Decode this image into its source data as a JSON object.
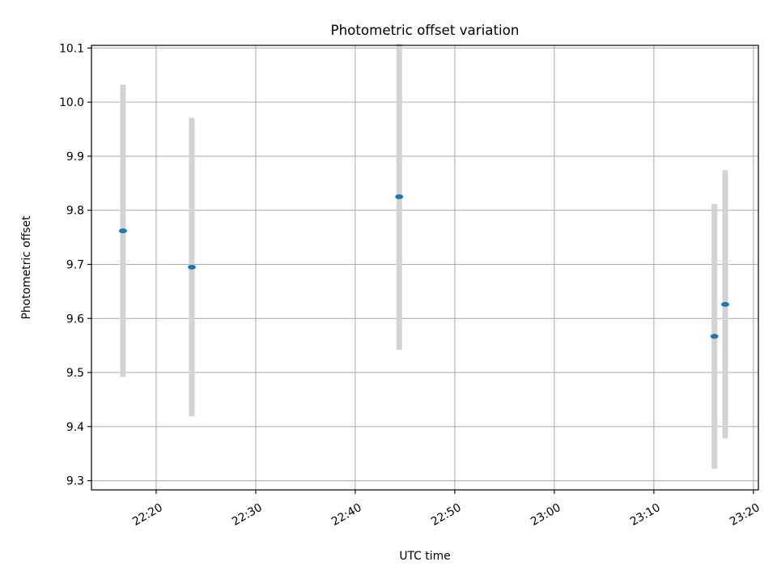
{
  "chart_data": {
    "type": "scatter",
    "title": "Photometric offset variation",
    "xlabel": "UTC time",
    "ylabel": "Photometric offset",
    "xlim": [
      "22:13:30",
      "23:20:30"
    ],
    "ylim": [
      9.283,
      10.105
    ],
    "x_ticks": [
      "22:20",
      "22:30",
      "22:40",
      "22:50",
      "23:00",
      "23:10",
      "23:20"
    ],
    "y_ticks": [
      "9.3",
      "9.4",
      "9.5",
      "9.6",
      "9.7",
      "9.8",
      "9.9",
      "10.0",
      "10.1"
    ],
    "grid": true,
    "marker_color": "#1f77b4",
    "errorbar_color": "#d3d3d3",
    "points": [
      {
        "x": "22:16:40",
        "y": 9.762,
        "yerr": 0.27
      },
      {
        "x": "22:23:35",
        "y": 9.695,
        "yerr": 0.276
      },
      {
        "x": "22:44:25",
        "y": 9.825,
        "yerr": 0.283
      },
      {
        "x": "23:16:05",
        "y": 9.567,
        "yerr": 0.245
      },
      {
        "x": "23:17:10",
        "y": 9.626,
        "yerr": 0.248
      }
    ]
  }
}
